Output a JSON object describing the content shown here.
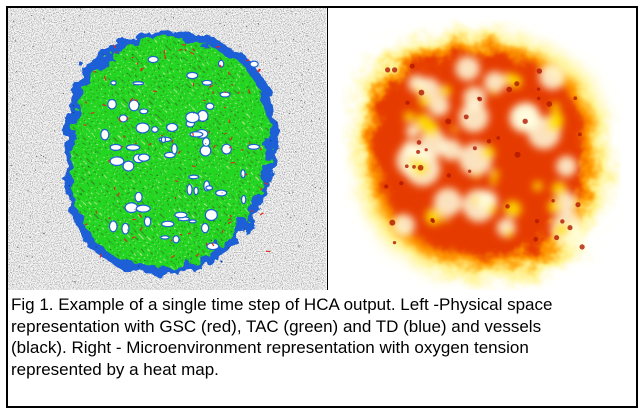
{
  "figure": {
    "caption_lines": [
      "Fig 1. Example of a single time step of HCA output.  Left -Physical space",
      "representation with GSC (red), TAC (green) and TD (blue) and vessels",
      "(black). Right - Microenvironment representation with oxygen tension",
      "represented by a heat map."
    ],
    "left_panel": {
      "colors": {
        "gsc": "#e0261f",
        "tac": "#22d622",
        "td": "#1f5fd6",
        "vessels": "#111111",
        "background": "#f4f4f4"
      }
    },
    "right_panel": {
      "colors": {
        "high": "#ffffe0",
        "mid": "#ffe000",
        "low": "#e06000",
        "lowest": "#b01800"
      }
    }
  }
}
